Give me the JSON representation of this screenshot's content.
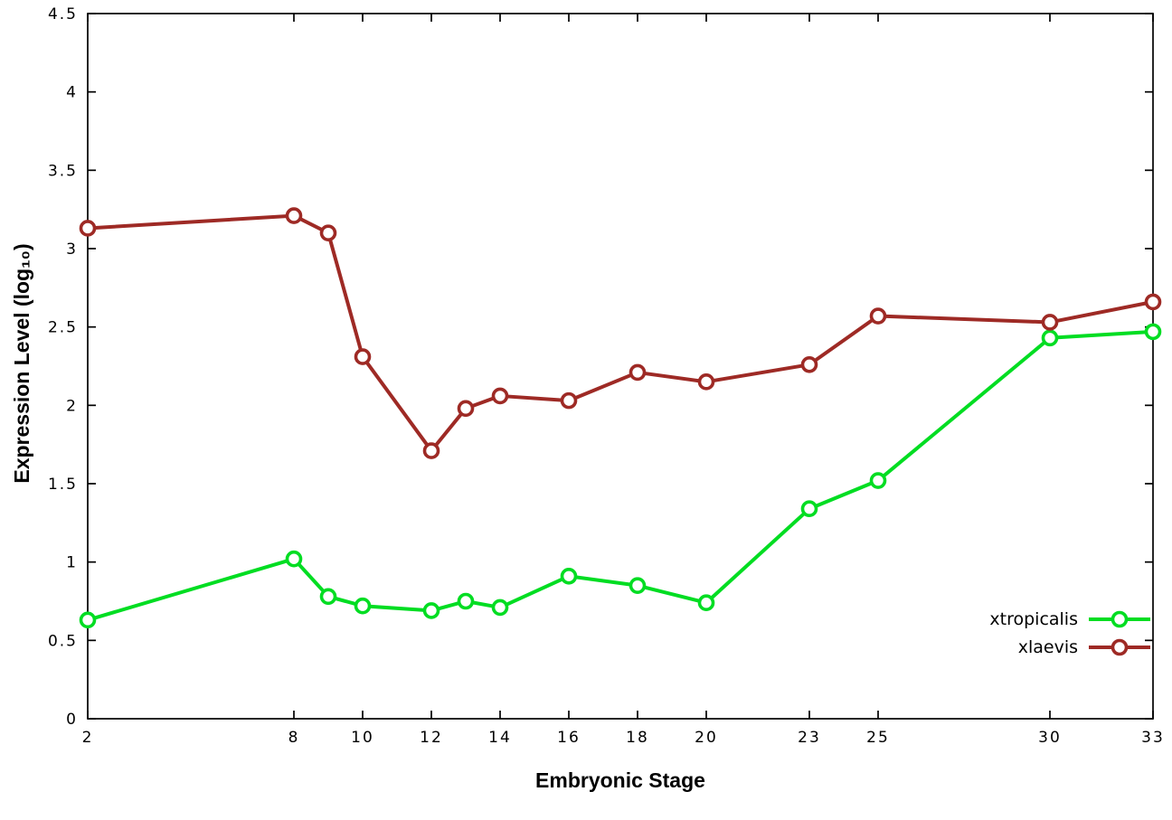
{
  "chart_data": {
    "type": "line",
    "title": "",
    "xlabel": "Embryonic Stage",
    "ylabel": "Expression Level (log₁₀)",
    "xlim": [
      2,
      33
    ],
    "ylim": [
      0,
      4.5
    ],
    "xticks": [
      2,
      8,
      10,
      12,
      14,
      16,
      18,
      20,
      23,
      25,
      30,
      33
    ],
    "yticks": [
      0,
      0.5,
      1,
      1.5,
      2,
      2.5,
      3,
      3.5,
      4,
      4.5
    ],
    "ytick_labels": [
      "0",
      "0.5",
      "1",
      "1.5",
      "2",
      "2.5",
      "3",
      "3.5",
      "4",
      "4.5"
    ],
    "grid": false,
    "legend_position": "bottom-right",
    "background": "#ffffff",
    "x": [
      2,
      8,
      9,
      10,
      12,
      13,
      14,
      16,
      18,
      20,
      23,
      25,
      30,
      33
    ],
    "series": [
      {
        "name": "xtropicalis",
        "color": "#00dd22",
        "values": [
          0.63,
          1.02,
          0.78,
          0.72,
          0.69,
          0.75,
          0.71,
          0.91,
          0.85,
          0.74,
          1.34,
          1.52,
          2.43,
          2.47
        ]
      },
      {
        "name": "xlaevis",
        "color": "#9e2a25",
        "values": [
          3.13,
          3.21,
          3.1,
          2.31,
          1.71,
          1.98,
          2.06,
          2.03,
          2.21,
          2.15,
          2.26,
          2.57,
          2.53,
          2.66
        ]
      }
    ]
  }
}
